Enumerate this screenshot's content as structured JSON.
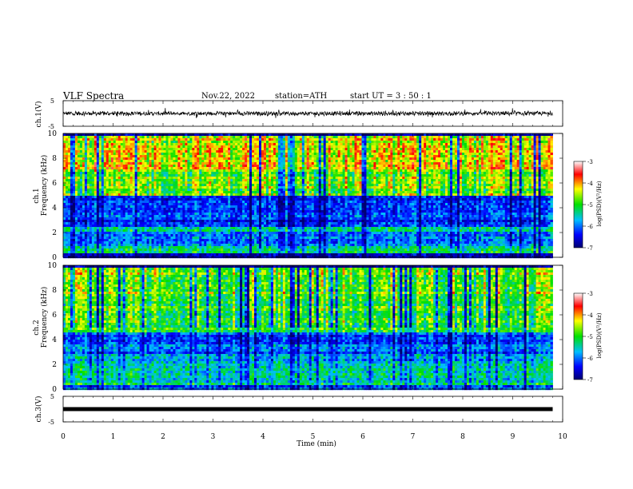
{
  "header": {
    "title": "VLF  Spectra",
    "date": "Nov.22, 2022",
    "station": "station=ATH",
    "start": "start  UT  =    3  : 50 : 1"
  },
  "axes": {
    "ch1_label": "ch.1(V)",
    "ch3_label": "ch.3(V)",
    "spec1_label_line1": "ch.1",
    "spec1_label_line2": "Frequency (kHz)",
    "spec2_label_line1": "ch.2",
    "spec2_label_line2": "Frequency (kHz)",
    "xlabel": "Time  (min)",
    "colorbar_label": "log(PSD)(V²/Hz)"
  },
  "colors": {
    "colormap": [
      "#000070",
      "#0000ff",
      "#00bfff",
      "#00e000",
      "#ffff00",
      "#ff0000",
      "#ffffff"
    ],
    "trace": "#000000"
  },
  "chart_data": [
    {
      "type": "line",
      "name": "ch.1 waveform",
      "ylabel": "ch.1(V)",
      "yticks": [
        5,
        -5
      ],
      "ylim": [
        -5,
        5
      ],
      "xlim": [
        0,
        10
      ],
      "data_end_min": 9.8,
      "baseline": 0,
      "amplitude_range": [
        -2,
        2.5
      ]
    },
    {
      "type": "heatmap",
      "name": "ch.1 spectrogram",
      "ylabel": "Frequency (kHz)",
      "yticks": [
        0,
        2,
        4,
        6,
        8,
        10
      ],
      "ylim": [
        0,
        10
      ],
      "xlim": [
        0,
        10
      ],
      "data_end_min": 9.8,
      "bands_logpsd": [
        {
          "from_khz": 0.0,
          "to_khz": 0.5,
          "level": -6.8
        },
        {
          "from_khz": 0.5,
          "to_khz": 1.0,
          "level": -5.3
        },
        {
          "from_khz": 1.0,
          "to_khz": 2.2,
          "level": -6.0
        },
        {
          "from_khz": 2.2,
          "to_khz": 2.6,
          "level": -5.2
        },
        {
          "from_khz": 2.6,
          "to_khz": 5.0,
          "level": -6.2
        },
        {
          "from_khz": 5.0,
          "to_khz": 7.0,
          "level": -4.8
        },
        {
          "from_khz": 7.0,
          "to_khz": 10.0,
          "level": -4.4
        }
      ],
      "colorbar": {
        "ticks": [
          -3,
          -4,
          -5,
          -6,
          -7
        ],
        "range": [
          -7,
          -3
        ],
        "label": "log(PSD)(V²/Hz)"
      }
    },
    {
      "type": "heatmap",
      "name": "ch.2 spectrogram",
      "ylabel": "Frequency (kHz)",
      "yticks": [
        0,
        2,
        4,
        6,
        8,
        10
      ],
      "ylim": [
        0,
        10
      ],
      "xlim": [
        0,
        10
      ],
      "data_end_min": 9.8,
      "bands_logpsd": [
        {
          "from_khz": 0.0,
          "to_khz": 0.5,
          "level": -6.0
        },
        {
          "from_khz": 0.5,
          "to_khz": 2.2,
          "level": -5.3
        },
        {
          "from_khz": 2.2,
          "to_khz": 3.0,
          "level": -5.8
        },
        {
          "from_khz": 3.0,
          "to_khz": 4.6,
          "level": -6.0
        },
        {
          "from_khz": 4.6,
          "to_khz": 7.0,
          "level": -5.0
        },
        {
          "from_khz": 7.0,
          "to_khz": 10.0,
          "level": -4.8
        }
      ],
      "colorbar": {
        "ticks": [
          -3,
          -4,
          -5,
          -6,
          -7
        ],
        "range": [
          -7,
          -3
        ],
        "label": "log(PSD)(V²/Hz)"
      }
    },
    {
      "type": "line",
      "name": "ch.3 waveform",
      "ylabel": "ch.3(V)",
      "yticks": [
        5,
        -5
      ],
      "ylim": [
        -5,
        5
      ],
      "xlim": [
        0,
        10
      ],
      "data_end_min": 9.8,
      "baseline": 0,
      "amplitude_range": [
        -0.3,
        0.3
      ]
    }
  ],
  "x_axis": {
    "ticks": [
      0,
      1,
      2,
      3,
      4,
      5,
      6,
      7,
      8,
      9,
      10
    ],
    "tick_labels": [
      "0",
      "1",
      "2",
      "3",
      "4",
      "5",
      "6",
      "7",
      "8",
      "9",
      "10"
    ]
  }
}
